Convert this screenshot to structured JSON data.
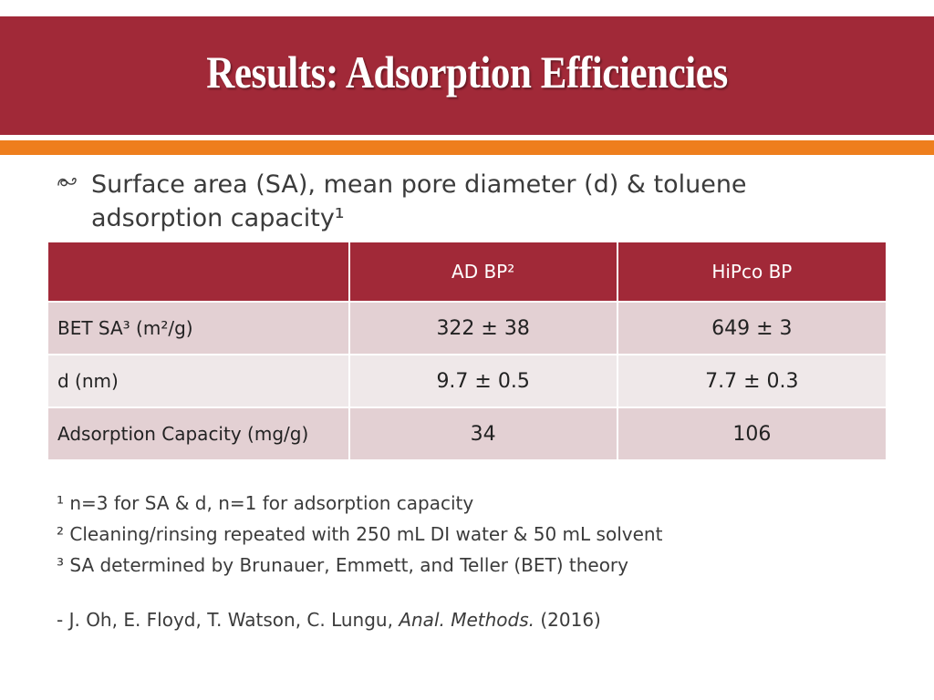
{
  "slide": {
    "title": "Results: Adsorption Efficiencies",
    "bullet_icon": "swash-bullet-icon",
    "bullet_line1": "Surface area (SA), mean pore diameter (d) & toluene",
    "bullet_line2": "adsorption capacity¹"
  },
  "colors": {
    "title_band": "#a12938",
    "accent_band": "#ee7e1d",
    "table_header": "#a12938",
    "row_odd": "#e3d0d3",
    "row_even": "#efe8e9"
  },
  "table": {
    "headers": [
      "",
      "AD BP²",
      "HiPco  BP"
    ],
    "rows": [
      {
        "label": "BET SA³ (m²/g)",
        "ad_bp": "322 ± 38",
        "hipco_bp": "649 ± 3"
      },
      {
        "label": "d (nm)",
        "ad_bp": "9.7 ± 0.5",
        "hipco_bp": "7.7 ± 0.3"
      },
      {
        "label": "Adsorption Capacity (mg/g)",
        "ad_bp": "34",
        "hipco_bp": "106"
      }
    ]
  },
  "footnotes": [
    "¹ n=3 for SA & d, n=1 for adsorption capacity",
    "² Cleaning/rinsing repeated with 250 mL DI water & 50 mL solvent",
    "³ SA determined by Brunauer, Emmett, and Teller (BET) theory"
  ],
  "citation": {
    "authors": "- J. Oh, E. Floyd, T. Watson, C. Lungu, ",
    "journal": "Anal. Methods.",
    "year": " (2016)"
  }
}
